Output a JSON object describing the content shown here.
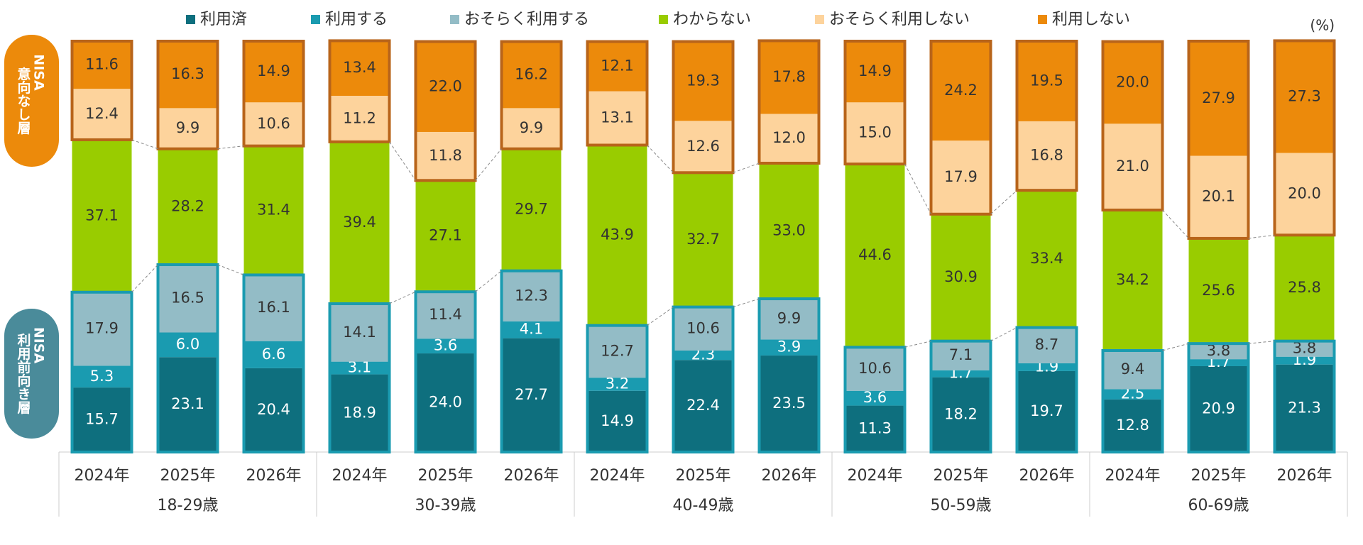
{
  "chart_data": {
    "type": "stacked-bar",
    "unit": "(%)",
    "categories": [
      "2024年",
      "2025年",
      "2026年",
      "2024年",
      "2025年",
      "2026年",
      "2024年",
      "2025年",
      "2026年",
      "2024年",
      "2025年",
      "2026年",
      "2024年",
      "2025年",
      "2026年"
    ],
    "groups": [
      "18-29歳",
      "30-39歳",
      "40-49歳",
      "50-59歳",
      "60-69歳"
    ],
    "side_labels": [
      {
        "line1": "NISA",
        "line2": "意向なし層",
        "color": "#ec8a0b"
      },
      {
        "line1": "NISA",
        "line2": "利用前向き層",
        "color": "#4a8b9a"
      }
    ],
    "ylim": [
      0,
      100
    ],
    "series": [
      {
        "name": "利用済",
        "color": "#0e6f7e",
        "values": [
          15.7,
          23.1,
          20.4,
          18.9,
          24.0,
          27.7,
          14.9,
          22.4,
          23.5,
          11.3,
          18.2,
          19.7,
          12.8,
          20.9,
          21.3
        ],
        "value_labels": [
          "15.7",
          "23.1",
          "20.4",
          "18.9",
          "24.0",
          "27.7",
          "14.9",
          "22.4",
          "23.5",
          "11.3",
          "18.2",
          "19.7",
          "12.8",
          "20.9",
          "21.3"
        ]
      },
      {
        "name": "利用する",
        "color": "#1a9bb0",
        "values": [
          5.3,
          6.0,
          6.6,
          3.1,
          3.6,
          4.1,
          3.2,
          2.3,
          3.9,
          3.6,
          1.7,
          1.9,
          2.5,
          1.7,
          1.9
        ],
        "value_labels": [
          "5.3",
          "6.0",
          "6.6",
          "3.1",
          "3.6",
          "4.1",
          "3.2",
          "2.3",
          "3.9",
          "3.6",
          "1.7",
          "1.9",
          "2.5",
          "1.7",
          "1.9"
        ]
      },
      {
        "name": "おそらく利用する",
        "color": "#93bcc6",
        "values": [
          17.9,
          16.5,
          16.1,
          14.1,
          11.4,
          12.3,
          12.7,
          10.6,
          9.9,
          10.6,
          7.1,
          8.7,
          9.4,
          3.8,
          3.8
        ],
        "value_labels": [
          "17.9",
          "16.5",
          "16.1",
          "14.1",
          "11.4",
          "12.3",
          "12.7",
          "10.6",
          "9.9",
          "10.6",
          "7.1",
          "8.7",
          "9.4",
          "3.8",
          "3.8"
        ]
      },
      {
        "name": "わからない",
        "color": "#99cc00",
        "values": [
          37.1,
          28.2,
          31.4,
          39.4,
          27.1,
          29.7,
          43.9,
          32.7,
          33.0,
          44.6,
          30.9,
          33.4,
          34.2,
          25.6,
          25.8
        ],
        "value_labels": [
          "37.1",
          "28.2",
          "31.4",
          "39.4",
          "27.1",
          "29.7",
          "43.9",
          "32.7",
          "33.0",
          "44.6",
          "30.9",
          "33.4",
          "34.2",
          "25.6",
          "25.8"
        ]
      },
      {
        "name": "おそらく利用しない",
        "color": "#fdd39c",
        "values": [
          12.4,
          9.9,
          10.6,
          11.2,
          11.8,
          9.9,
          13.1,
          12.6,
          12.0,
          15.0,
          17.9,
          16.8,
          21.0,
          20.1,
          20.0
        ],
        "value_labels": [
          "12.4",
          "9.9",
          "10.6",
          "11.2",
          "11.8",
          "9.9",
          "13.1",
          "12.6",
          "12.0",
          "15.0",
          "17.9",
          "16.8",
          "21.0",
          "20.1",
          "20.0"
        ]
      },
      {
        "name": "利用しない",
        "color": "#ec8a0b",
        "values": [
          11.6,
          16.3,
          14.9,
          13.4,
          22.0,
          16.2,
          12.1,
          19.3,
          17.8,
          14.9,
          24.2,
          19.5,
          20.0,
          27.9,
          27.3
        ],
        "value_labels": [
          "11.6",
          "16.3",
          "14.9",
          "13.4",
          "22.0",
          "16.2",
          "12.1",
          "19.3",
          "17.8",
          "14.9",
          "24.2",
          "19.5",
          "20.0",
          "27.9",
          "27.3"
        ]
      }
    ]
  }
}
